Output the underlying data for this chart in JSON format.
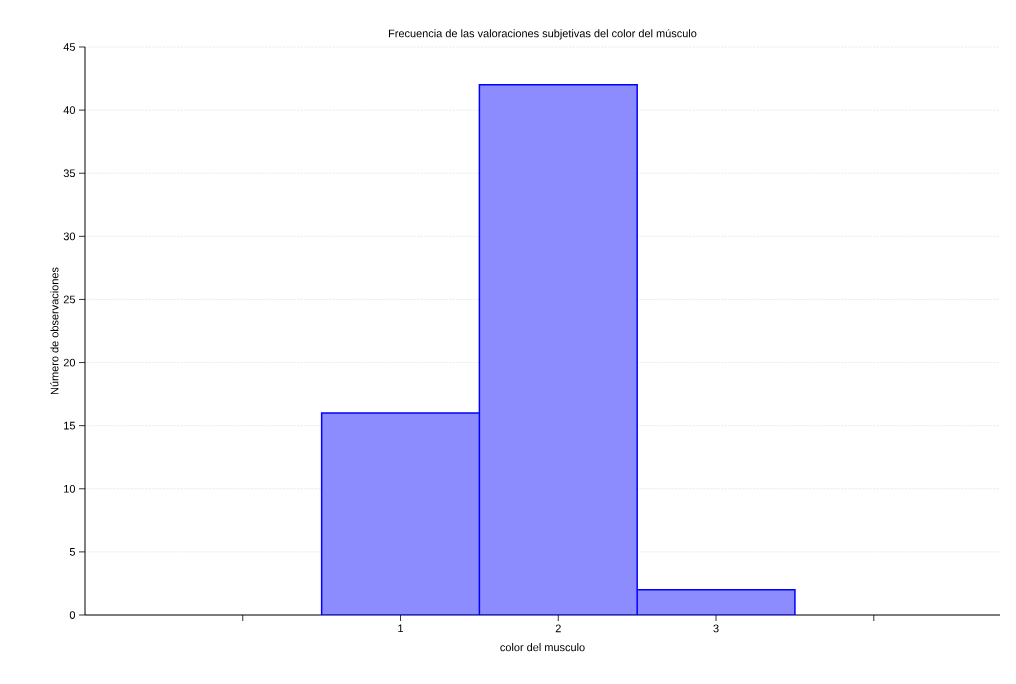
{
  "chart_data": {
    "type": "histogram",
    "title": "Frecuencia de las valoraciones subjetivas del color del músculo",
    "xlabel": "color del musculo",
    "ylabel": "Número de observaciones",
    "bins": [
      0.5,
      1.5,
      2.5,
      3.5
    ],
    "values": [
      16,
      42,
      2
    ],
    "color": "#8c8cff",
    "xlim": [
      -1,
      4.8
    ],
    "xticks": [
      {
        "value": 0,
        "label": null
      },
      1,
      2,
      3,
      {
        "value": 4,
        "label": null
      }
    ],
    "ylim": [
      0,
      45
    ],
    "yticks": [
      0,
      5,
      10,
      15,
      20,
      25,
      30,
      35,
      40,
      45
    ],
    "grid": "y"
  }
}
